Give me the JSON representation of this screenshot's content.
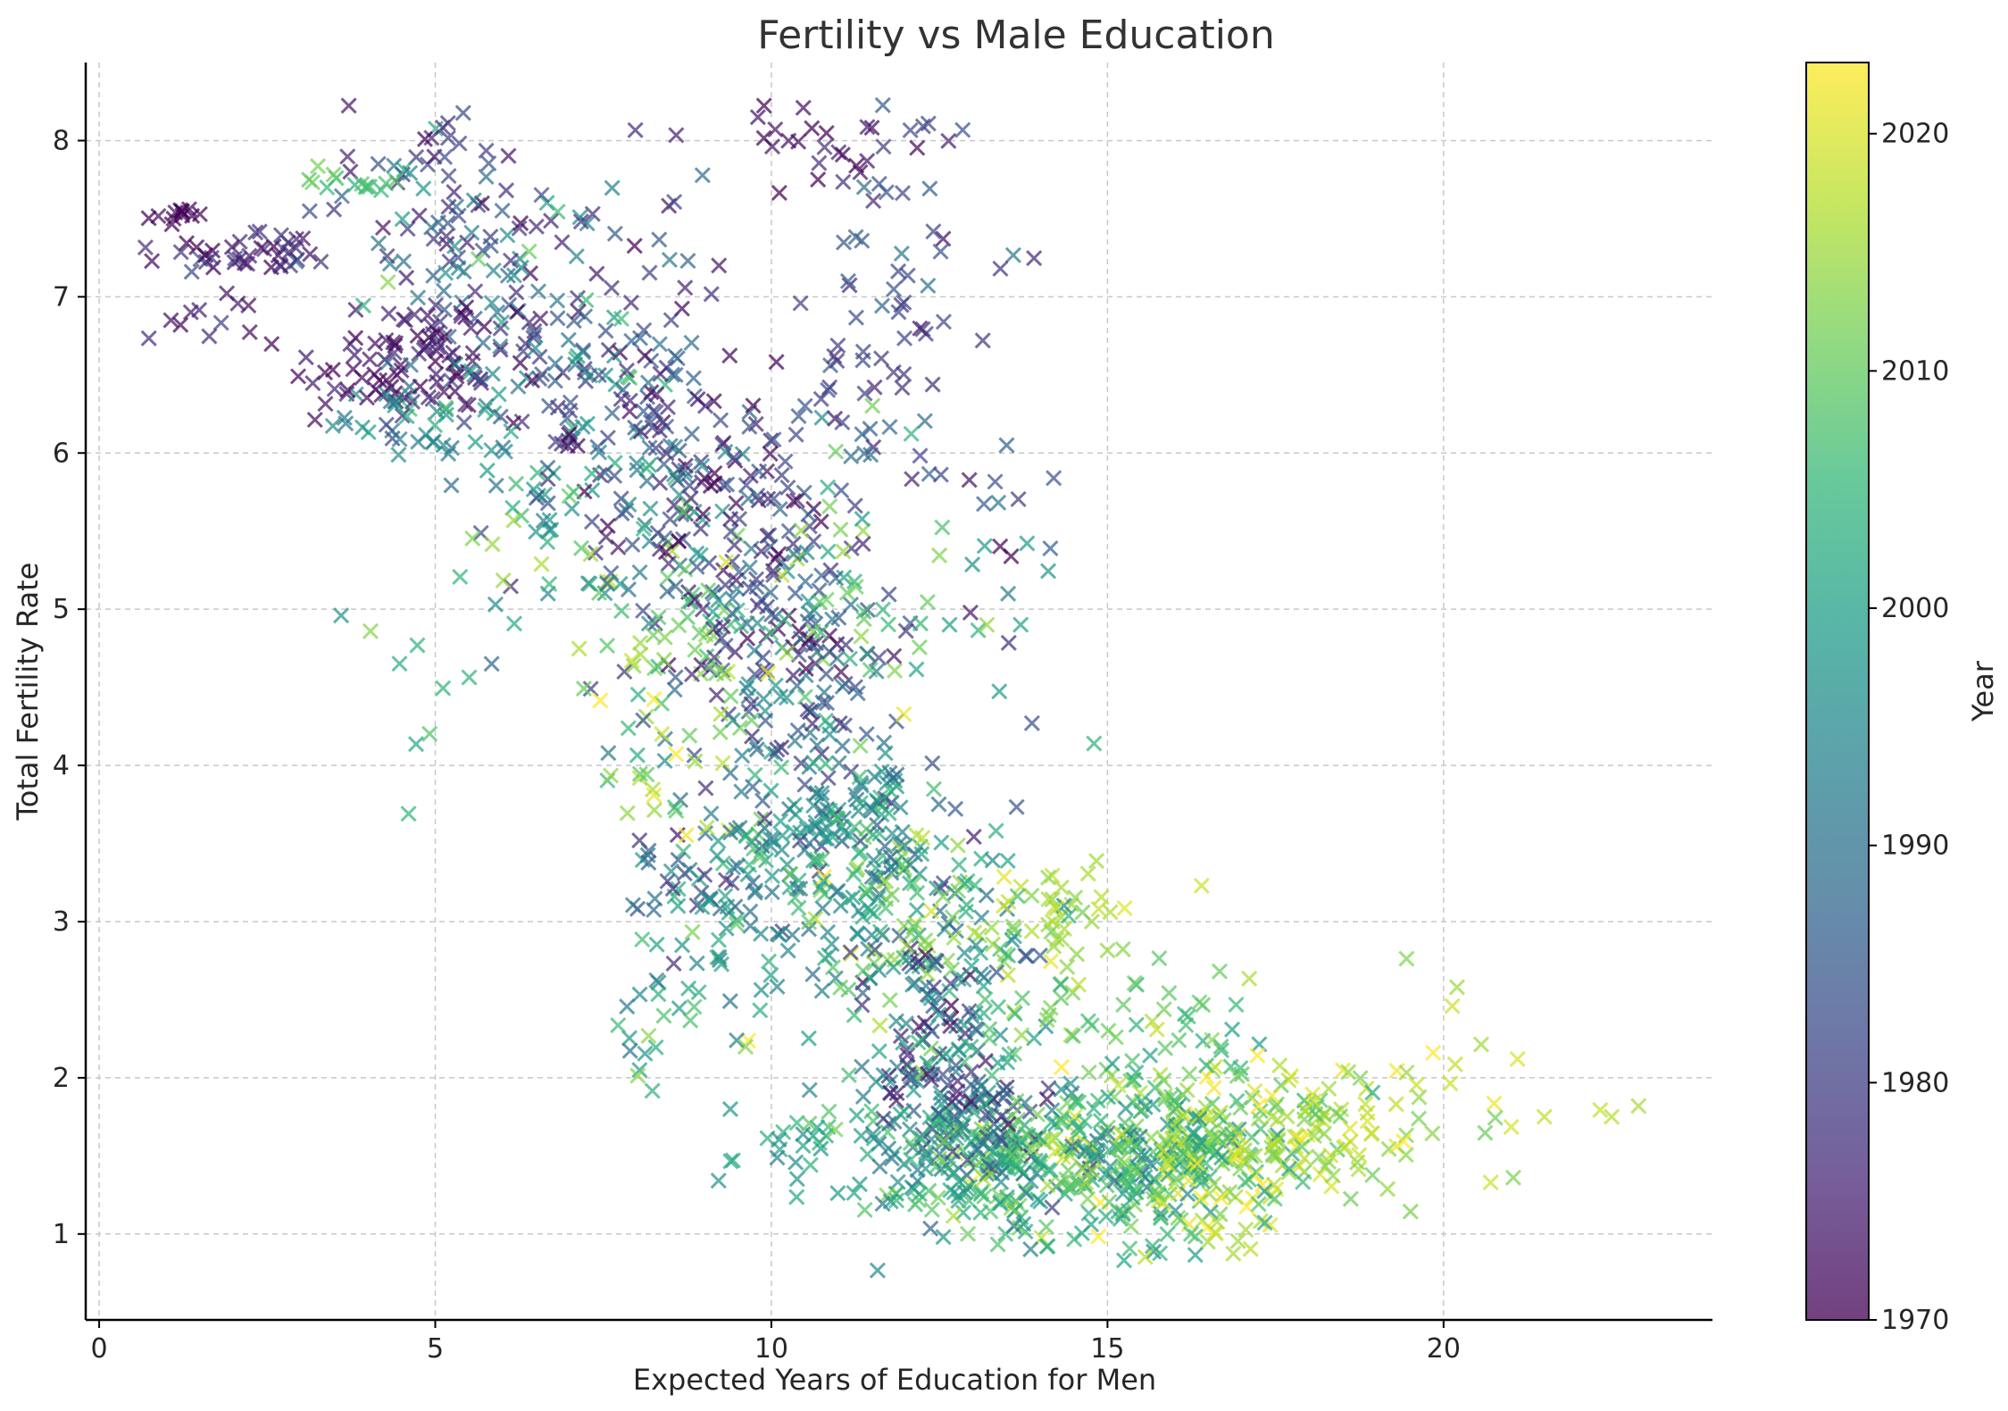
{
  "chart_data": {
    "type": "scatter",
    "title": "Fertility vs Male Education",
    "xlabel": "Expected Years of Education for Men",
    "ylabel": "Total Fertility Rate",
    "xlim": [
      -0.2,
      24
    ],
    "ylim": [
      0.45,
      8.5
    ],
    "xticks": [
      0,
      5,
      10,
      15,
      20
    ],
    "xtick_labels": [
      "0",
      "5",
      "10",
      "15",
      "20"
    ],
    "yticks": [
      1,
      2,
      3,
      4,
      5,
      6,
      7,
      8
    ],
    "ytick_labels": [
      "1",
      "2",
      "3",
      "4",
      "5",
      "6",
      "7",
      "8"
    ],
    "grid": true,
    "marker": "x",
    "colormap": "viridis",
    "colorbar": {
      "label": "Year",
      "range": [
        1970,
        2023
      ],
      "ticks": [
        1970,
        1980,
        1990,
        2000,
        2010,
        2020
      ],
      "tick_labels": [
        "1970",
        "1980",
        "1990",
        "2000",
        "2010",
        "2020"
      ]
    },
    "viridis_stops": [
      "#440154",
      "#482878",
      "#3e4989",
      "#31688e",
      "#26828e",
      "#1f9e89",
      "#35b779",
      "#6ece58",
      "#b5de2b",
      "#fde725"
    ],
    "clusters": [
      {
        "x": 1.2,
        "y": 7.52,
        "sx": 0.15,
        "sy": 0.03,
        "year": 1970,
        "sy_year": 2,
        "n": 12
      },
      {
        "x": 2.2,
        "y": 7.25,
        "sx": 0.6,
        "sy": 0.08,
        "year": 1976,
        "sy_year": 4,
        "n": 40
      },
      {
        "x": 1.6,
        "y": 6.9,
        "sx": 0.4,
        "sy": 0.15,
        "year": 1974,
        "sy_year": 3,
        "n": 12
      },
      {
        "x": 4.0,
        "y": 6.55,
        "sx": 0.5,
        "sy": 0.15,
        "year": 1972,
        "sy_year": 3,
        "n": 40
      },
      {
        "x": 5.0,
        "y": 6.7,
        "sx": 0.4,
        "sy": 0.2,
        "year": 1973,
        "sy_year": 3,
        "n": 40
      },
      {
        "x": 4.0,
        "y": 7.75,
        "sx": 0.5,
        "sy": 0.05,
        "year": 2008,
        "sy_year": 3,
        "n": 15
      },
      {
        "x": 4.8,
        "y": 7.5,
        "sx": 0.8,
        "sy": 0.3,
        "year": 1985,
        "sy_year": 8,
        "n": 40
      },
      {
        "x": 5.0,
        "y": 8.0,
        "sx": 0.8,
        "sy": 0.12,
        "year": 1978,
        "sy_year": 4,
        "n": 12
      },
      {
        "x": 6.0,
        "y": 6.8,
        "sx": 1.2,
        "sy": 0.5,
        "year": 1990,
        "sy_year": 10,
        "n": 90
      },
      {
        "x": 4.8,
        "y": 6.2,
        "sx": 0.5,
        "sy": 0.2,
        "year": 1995,
        "sy_year": 5,
        "n": 30
      },
      {
        "x": 7.5,
        "y": 6.5,
        "sx": 1.2,
        "sy": 0.6,
        "year": 1980,
        "sy_year": 8,
        "n": 110
      },
      {
        "x": 8.0,
        "y": 5.7,
        "sx": 1.0,
        "sy": 0.6,
        "year": 1988,
        "sy_year": 10,
        "n": 110
      },
      {
        "x": 10.8,
        "y": 8.0,
        "sx": 0.8,
        "sy": 0.1,
        "year": 1974,
        "sy_year": 4,
        "n": 22
      },
      {
        "x": 12.0,
        "y": 7.3,
        "sx": 0.6,
        "sy": 0.45,
        "year": 1980,
        "sy_year": 5,
        "n": 35
      },
      {
        "x": 11.5,
        "y": 6.4,
        "sx": 0.7,
        "sy": 0.4,
        "year": 1983,
        "sy_year": 6,
        "n": 40
      },
      {
        "x": 9.5,
        "y": 5.4,
        "sx": 0.8,
        "sy": 0.5,
        "year": 1978,
        "sy_year": 6,
        "n": 110
      },
      {
        "x": 10.5,
        "y": 4.6,
        "sx": 0.8,
        "sy": 0.5,
        "year": 1985,
        "sy_year": 8,
        "n": 110
      },
      {
        "x": 9.0,
        "y": 4.9,
        "sx": 0.6,
        "sy": 0.35,
        "year": 2010,
        "sy_year": 4,
        "n": 40
      },
      {
        "x": 7.2,
        "y": 5.4,
        "sx": 0.8,
        "sy": 0.4,
        "year": 2004,
        "sy_year": 6,
        "n": 40
      },
      {
        "x": 11.2,
        "y": 5.1,
        "sx": 0.7,
        "sy": 0.4,
        "year": 2008,
        "sy_year": 5,
        "n": 40
      },
      {
        "x": 8.0,
        "y": 4.0,
        "sx": 0.7,
        "sy": 0.4,
        "year": 2015,
        "sy_year": 6,
        "n": 30
      },
      {
        "x": 9.2,
        "y": 3.3,
        "sx": 0.8,
        "sy": 0.4,
        "year": 1992,
        "sy_year": 10,
        "n": 90
      },
      {
        "x": 11.0,
        "y": 3.5,
        "sx": 0.8,
        "sy": 0.4,
        "year": 1997,
        "sy_year": 8,
        "n": 140
      },
      {
        "x": 11.8,
        "y": 3.2,
        "sx": 0.6,
        "sy": 0.3,
        "year": 2010,
        "sy_year": 5,
        "n": 60
      },
      {
        "x": 8.5,
        "y": 2.4,
        "sx": 0.6,
        "sy": 0.3,
        "year": 2000,
        "sy_year": 8,
        "n": 25
      },
      {
        "x": 12.5,
        "y": 2.6,
        "sx": 0.9,
        "sy": 0.5,
        "year": 1997,
        "sy_year": 10,
        "n": 160
      },
      {
        "x": 12.4,
        "y": 2.2,
        "sx": 0.4,
        "sy": 0.3,
        "year": 1975,
        "sy_year": 4,
        "n": 30
      },
      {
        "x": 14.0,
        "y": 2.9,
        "sx": 0.6,
        "sy": 0.25,
        "year": 2015,
        "sy_year": 3,
        "n": 50
      },
      {
        "x": 13.0,
        "y": 1.5,
        "sx": 1.0,
        "sy": 0.25,
        "year": 2002,
        "sy_year": 8,
        "n": 200
      },
      {
        "x": 13.0,
        "y": 1.8,
        "sx": 0.5,
        "sy": 0.2,
        "year": 1983,
        "sy_year": 6,
        "n": 60
      },
      {
        "x": 15.2,
        "y": 1.45,
        "sx": 1.0,
        "sy": 0.25,
        "year": 2003,
        "sy_year": 8,
        "n": 200
      },
      {
        "x": 16.5,
        "y": 1.6,
        "sx": 0.9,
        "sy": 0.25,
        "year": 2012,
        "sy_year": 7,
        "n": 160
      },
      {
        "x": 16.8,
        "y": 1.15,
        "sx": 0.4,
        "sy": 0.15,
        "year": 2019,
        "sy_year": 3,
        "n": 25
      },
      {
        "x": 18.2,
        "y": 1.65,
        "sx": 0.7,
        "sy": 0.2,
        "year": 2016,
        "sy_year": 4,
        "n": 70
      },
      {
        "x": 15.5,
        "y": 2.3,
        "sx": 0.8,
        "sy": 0.25,
        "year": 2008,
        "sy_year": 6,
        "n": 50
      },
      {
        "x": 13.5,
        "y": 5.2,
        "sx": 0.5,
        "sy": 0.5,
        "year": 1990,
        "sy_year": 12,
        "n": 20
      },
      {
        "x": 20.5,
        "y": 1.9,
        "sx": 1.0,
        "sy": 0.35,
        "year": 2017,
        "sy_year": 4,
        "n": 20
      },
      {
        "x": 10.5,
        "y": 1.5,
        "sx": 0.6,
        "sy": 0.15,
        "year": 2000,
        "sy_year": 5,
        "n": 25
      },
      {
        "x": 4.5,
        "y": 4.4,
        "sx": 0.5,
        "sy": 0.3,
        "year": 2005,
        "sy_year": 4,
        "n": 8
      }
    ],
    "outliers": [
      {
        "x": 22.5,
        "y": 1.75,
        "year": 2017
      },
      {
        "x": 22.9,
        "y": 1.82,
        "year": 2016
      },
      {
        "x": 21.5,
        "y": 1.75,
        "year": 2018
      },
      {
        "x": 21.1,
        "y": 2.12,
        "year": 2020
      },
      {
        "x": 20.7,
        "y": 1.33,
        "year": 2019
      },
      {
        "x": 20.2,
        "y": 2.58,
        "year": 2015
      },
      {
        "x": 16.4,
        "y": 3.23,
        "year": 2019
      },
      {
        "x": 14.8,
        "y": 4.14,
        "year": 2004
      },
      {
        "x": 3.6,
        "y": 4.96,
        "year": 1997
      },
      {
        "x": 9.8,
        "y": 8.15,
        "year": 1973
      },
      {
        "x": 13.5,
        "y": 6.05,
        "year": 1986
      },
      {
        "x": 14.2,
        "y": 5.84,
        "year": 1984
      }
    ]
  }
}
